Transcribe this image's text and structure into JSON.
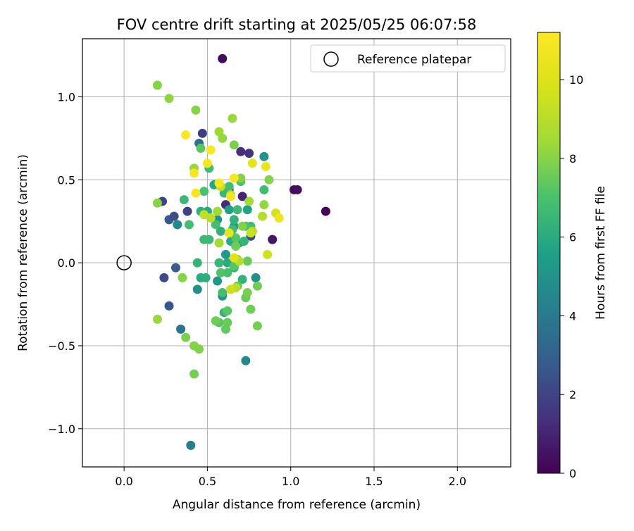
{
  "chart_data": {
    "type": "scatter",
    "title": "FOV centre drift starting at 2025/05/25 06:07:58",
    "xlabel": "Angular distance from reference (arcmin)",
    "ylabel": "Rotation from reference (arcmin)",
    "xlim": [
      -0.25,
      2.32
    ],
    "ylim": [
      -1.23,
      1.35
    ],
    "xticks": [
      0.0,
      0.5,
      1.0,
      1.5,
      2.0
    ],
    "xtick_labels": [
      "0.0",
      "0.5",
      "1.0",
      "1.5",
      "2.0"
    ],
    "yticks": [
      -1.0,
      -0.5,
      0.0,
      0.5,
      1.0
    ],
    "ytick_labels": [
      "−1.0",
      "−0.5",
      "0.0",
      "0.5",
      "1.0"
    ],
    "grid": true,
    "legend": {
      "position": "top-right",
      "entries": [
        "Reference platepar"
      ]
    },
    "colormap": "viridis",
    "colorbar": {
      "label": "Hours from first FF file",
      "range": [
        0,
        11.2
      ],
      "ticks": [
        0,
        2,
        4,
        6,
        8,
        10
      ],
      "tick_labels": [
        "0",
        "2",
        "4",
        "6",
        "8",
        "10"
      ]
    },
    "reference_point": {
      "x": 0.0,
      "y": 0.0
    },
    "points": [
      {
        "x": 0.59,
        "y": 1.23,
        "h": 0.3
      },
      {
        "x": 1.21,
        "y": 0.31,
        "h": 0.2
      },
      {
        "x": 1.02,
        "y": 0.44,
        "h": 0.3
      },
      {
        "x": 1.04,
        "y": 0.44,
        "h": 0.4
      },
      {
        "x": 0.89,
        "y": 0.14,
        "h": 0.6
      },
      {
        "x": 0.61,
        "y": 0.35,
        "h": 1.2
      },
      {
        "x": 0.71,
        "y": 0.4,
        "h": 1.0
      },
      {
        "x": 0.7,
        "y": 0.67,
        "h": 1.3
      },
      {
        "x": 0.75,
        "y": 0.66,
        "h": 1.5
      },
      {
        "x": 0.47,
        "y": 0.78,
        "h": 1.8
      },
      {
        "x": 0.23,
        "y": 0.37,
        "h": 2.0
      },
      {
        "x": 0.38,
        "y": 0.31,
        "h": 1.8
      },
      {
        "x": 0.24,
        "y": -0.09,
        "h": 2.2
      },
      {
        "x": 0.31,
        "y": -0.03,
        "h": 2.8
      },
      {
        "x": 0.27,
        "y": -0.26,
        "h": 2.6
      },
      {
        "x": 0.27,
        "y": 0.26,
        "h": 2.7
      },
      {
        "x": 0.3,
        "y": 0.28,
        "h": 2.3
      },
      {
        "x": 0.76,
        "y": 0.16,
        "h": 2.2
      },
      {
        "x": 0.63,
        "y": 0.44,
        "h": 2.4
      },
      {
        "x": 0.45,
        "y": 0.72,
        "h": 3.6
      },
      {
        "x": 0.34,
        "y": -0.4,
        "h": 3.8
      },
      {
        "x": 0.4,
        "y": -1.1,
        "h": 4.2
      },
      {
        "x": 0.73,
        "y": -0.59,
        "h": 4.6
      },
      {
        "x": 0.32,
        "y": 0.23,
        "h": 4.6
      },
      {
        "x": 0.44,
        "y": -0.16,
        "h": 4.8
      },
      {
        "x": 0.59,
        "y": -0.2,
        "h": 5.0
      },
      {
        "x": 0.56,
        "y": -0.11,
        "h": 5.2
      },
      {
        "x": 0.56,
        "y": 0.26,
        "h": 5.0
      },
      {
        "x": 0.79,
        "y": -0.09,
        "h": 4.8
      },
      {
        "x": 0.84,
        "y": 0.64,
        "h": 5.0
      },
      {
        "x": 0.61,
        "y": 0.05,
        "h": 5.3
      },
      {
        "x": 0.66,
        "y": 0.22,
        "h": 5.4
      },
      {
        "x": 0.69,
        "y": 0.12,
        "h": 5.6
      },
      {
        "x": 0.74,
        "y": 0.32,
        "h": 5.7
      },
      {
        "x": 0.54,
        "y": 0.47,
        "h": 5.8
      },
      {
        "x": 0.63,
        "y": 0.32,
        "h": 5.5
      },
      {
        "x": 0.5,
        "y": 0.31,
        "h": 5.9
      },
      {
        "x": 0.62,
        "y": 0.0,
        "h": 6.0
      },
      {
        "x": 0.66,
        "y": -0.03,
        "h": 6.1
      },
      {
        "x": 0.58,
        "y": 0.19,
        "h": 6.2
      },
      {
        "x": 0.64,
        "y": 0.13,
        "h": 6.0
      },
      {
        "x": 0.72,
        "y": 0.13,
        "h": 6.4
      },
      {
        "x": 0.71,
        "y": -0.1,
        "h": 6.3
      },
      {
        "x": 0.6,
        "y": 0.42,
        "h": 6.5
      },
      {
        "x": 0.66,
        "y": 0.26,
        "h": 6.3
      },
      {
        "x": 0.51,
        "y": 0.14,
        "h": 6.6
      },
      {
        "x": 0.48,
        "y": 0.14,
        "h": 6.6
      },
      {
        "x": 0.57,
        "y": 0.0,
        "h": 6.5
      },
      {
        "x": 0.46,
        "y": 0.31,
        "h": 6.2
      },
      {
        "x": 0.44,
        "y": 0.0,
        "h": 6.4
      },
      {
        "x": 0.46,
        "y": -0.09,
        "h": 6.0
      },
      {
        "x": 0.49,
        "y": -0.09,
        "h": 6.1
      },
      {
        "x": 0.6,
        "y": -0.3,
        "h": 6.4
      },
      {
        "x": 0.65,
        "y": 0.2,
        "h": 6.7
      },
      {
        "x": 0.68,
        "y": 0.32,
        "h": 6.6
      },
      {
        "x": 0.76,
        "y": 0.22,
        "h": 6.7
      },
      {
        "x": 0.63,
        "y": 0.46,
        "h": 6.8
      },
      {
        "x": 0.7,
        "y": 0.49,
        "h": 6.9
      },
      {
        "x": 0.84,
        "y": 0.44,
        "h": 6.7
      },
      {
        "x": 0.62,
        "y": -0.06,
        "h": 6.9
      },
      {
        "x": 0.73,
        "y": 0.22,
        "h": 7.0
      },
      {
        "x": 0.36,
        "y": 0.38,
        "h": 6.6
      },
      {
        "x": 0.39,
        "y": 0.23,
        "h": 6.8
      },
      {
        "x": 0.51,
        "y": 0.57,
        "h": 6.7
      },
      {
        "x": 0.55,
        "y": 0.23,
        "h": 6.8
      },
      {
        "x": 0.58,
        "y": -0.06,
        "h": 7.1
      },
      {
        "x": 0.67,
        "y": 0.15,
        "h": 7.2
      },
      {
        "x": 0.66,
        "y": -0.02,
        "h": 7.2
      },
      {
        "x": 0.59,
        "y": -0.18,
        "h": 6.8
      },
      {
        "x": 0.48,
        "y": 0.43,
        "h": 7.0
      },
      {
        "x": 0.62,
        "y": -0.29,
        "h": 7.3
      },
      {
        "x": 0.57,
        "y": -0.36,
        "h": 7.2
      },
      {
        "x": 0.62,
        "y": -0.36,
        "h": 7.5
      },
      {
        "x": 0.61,
        "y": -0.4,
        "h": 7.4
      },
      {
        "x": 0.55,
        "y": -0.35,
        "h": 7.6
      },
      {
        "x": 0.46,
        "y": 0.69,
        "h": 7.3
      },
      {
        "x": 0.66,
        "y": 0.71,
        "h": 7.8
      },
      {
        "x": 0.67,
        "y": 0.1,
        "h": 7.6
      },
      {
        "x": 0.68,
        "y": -0.14,
        "h": 7.4
      },
      {
        "x": 0.73,
        "y": -0.21,
        "h": 7.5
      },
      {
        "x": 0.76,
        "y": -0.28,
        "h": 7.6
      },
      {
        "x": 0.74,
        "y": -0.18,
        "h": 7.8
      },
      {
        "x": 0.8,
        "y": -0.38,
        "h": 7.7
      },
      {
        "x": 0.8,
        "y": -0.14,
        "h": 7.6
      },
      {
        "x": 0.74,
        "y": 0.01,
        "h": 7.5
      },
      {
        "x": 0.68,
        "y": 0.02,
        "h": 7.8
      },
      {
        "x": 0.71,
        "y": 0.22,
        "h": 7.9
      },
      {
        "x": 0.7,
        "y": 0.51,
        "h": 8.0
      },
      {
        "x": 0.87,
        "y": 0.5,
        "h": 7.9
      },
      {
        "x": 0.84,
        "y": 0.35,
        "h": 8.2
      },
      {
        "x": 0.37,
        "y": -0.45,
        "h": 7.8
      },
      {
        "x": 0.42,
        "y": -0.5,
        "h": 8.0
      },
      {
        "x": 0.45,
        "y": -0.52,
        "h": 7.9
      },
      {
        "x": 0.42,
        "y": -0.67,
        "h": 7.7
      },
      {
        "x": 0.35,
        "y": -0.09,
        "h": 8.0
      },
      {
        "x": 0.2,
        "y": 0.36,
        "h": 8.0
      },
      {
        "x": 0.2,
        "y": -0.34,
        "h": 8.3
      },
      {
        "x": 0.2,
        "y": 1.07,
        "h": 8.0
      },
      {
        "x": 0.27,
        "y": 0.99,
        "h": 8.1
      },
      {
        "x": 0.43,
        "y": 0.92,
        "h": 8.0
      },
      {
        "x": 0.65,
        "y": 0.87,
        "h": 8.3
      },
      {
        "x": 0.57,
        "y": 0.79,
        "h": 8.4
      },
      {
        "x": 0.59,
        "y": 0.75,
        "h": 8.2
      },
      {
        "x": 0.56,
        "y": 0.31,
        "h": 8.4
      },
      {
        "x": 0.57,
        "y": 0.12,
        "h": 8.5
      },
      {
        "x": 0.64,
        "y": 0.41,
        "h": 8.6
      },
      {
        "x": 0.42,
        "y": 0.57,
        "h": 8.3
      },
      {
        "x": 0.75,
        "y": 0.37,
        "h": 8.5
      },
      {
        "x": 0.77,
        "y": 0.19,
        "h": 8.8
      },
      {
        "x": 0.83,
        "y": 0.28,
        "h": 8.9
      },
      {
        "x": 0.67,
        "y": -0.15,
        "h": 9.0
      },
      {
        "x": 0.69,
        "y": 0.01,
        "h": 8.9
      },
      {
        "x": 0.52,
        "y": 0.27,
        "h": 9.1
      },
      {
        "x": 0.48,
        "y": 0.29,
        "h": 9.2
      },
      {
        "x": 0.58,
        "y": 0.46,
        "h": 9.3
      },
      {
        "x": 0.64,
        "y": -0.16,
        "h": 9.5
      },
      {
        "x": 0.76,
        "y": 0.18,
        "h": 9.4
      },
      {
        "x": 0.86,
        "y": 0.05,
        "h": 9.6
      },
      {
        "x": 0.91,
        "y": 0.3,
        "h": 9.7
      },
      {
        "x": 0.66,
        "y": 0.03,
        "h": 10.2
      },
      {
        "x": 0.63,
        "y": 0.18,
        "h": 10.3
      },
      {
        "x": 0.77,
        "y": 0.6,
        "h": 10.3
      },
      {
        "x": 0.85,
        "y": 0.58,
        "h": 10.5
      },
      {
        "x": 0.93,
        "y": 0.27,
        "h": 10.6
      },
      {
        "x": 0.64,
        "y": 0.4,
        "h": 10.8
      },
      {
        "x": 0.66,
        "y": 0.51,
        "h": 10.9
      },
      {
        "x": 0.57,
        "y": 0.48,
        "h": 11.0
      },
      {
        "x": 0.43,
        "y": 0.42,
        "h": 11.0
      },
      {
        "x": 0.42,
        "y": 0.54,
        "h": 11.0
      },
      {
        "x": 0.5,
        "y": 0.6,
        "h": 11.0
      },
      {
        "x": 0.52,
        "y": 0.68,
        "h": 11.1
      },
      {
        "x": 0.37,
        "y": 0.77,
        "h": 11.1
      }
    ]
  }
}
